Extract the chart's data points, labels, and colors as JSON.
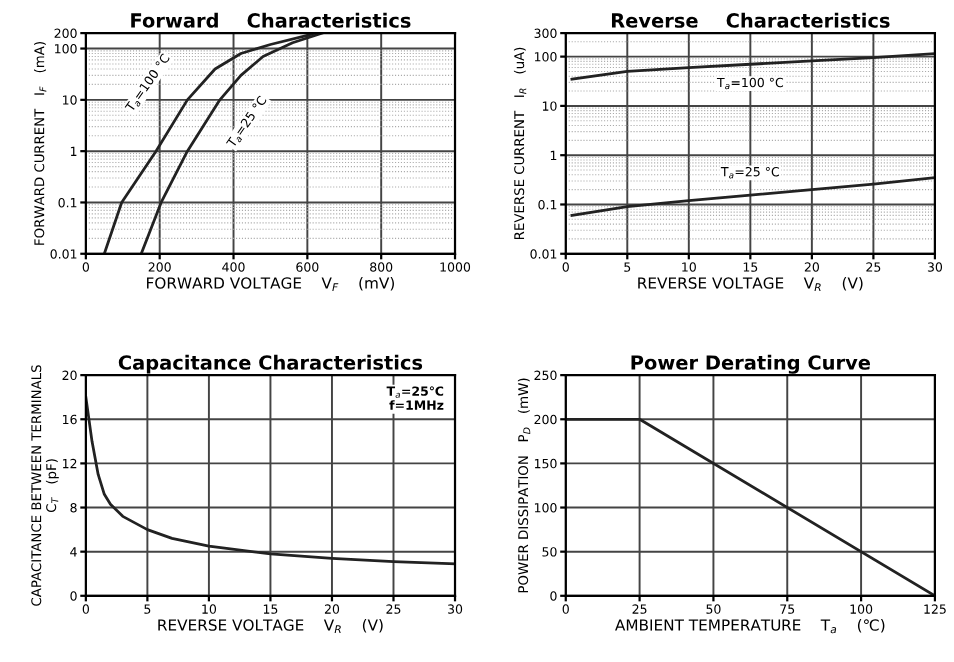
{
  "chart_data": [
    {
      "type": "line",
      "title": "Forward    Characteristics",
      "xlabel": "FORWARD VOLTAGE    V$_{F}$    (mV)",
      "ylabel": "FORWARD CURRENT   I$_{F}$   (mA)",
      "log": "y",
      "grid": true,
      "xlim": [
        0,
        1000
      ],
      "xticks": [
        0,
        200,
        400,
        600,
        800,
        1000
      ],
      "ylim": [
        0.01,
        200
      ],
      "yticks": [
        0.01,
        0.1,
        1,
        10,
        100,
        200
      ],
      "series": [
        {
          "color": "#222222",
          "x": [
            50,
            97,
            190,
            275,
            350,
            420,
            500,
            600,
            620
          ],
          "values": [
            0.01,
            0.1,
            1,
            10,
            40,
            80,
            120,
            180,
            200
          ]
        },
        {
          "color": "#222222",
          "x": [
            150,
            204,
            275,
            363,
            420,
            480,
            560,
            640
          ],
          "values": [
            0.01,
            0.1,
            1,
            10,
            30,
            70,
            130,
            200
          ]
        }
      ],
      "annotations": [
        {
          "text": "T$_{a}$=100 °C",
          "x": 275,
          "y": 10
        },
        {
          "text": "T$_{a}$=25 °C",
          "x": 363,
          "y": 10
        }
      ]
    },
    {
      "type": "line",
      "title": "Reverse    Characteristics",
      "xlabel": "REVERSE VOLTAGE    V$_{R}$    (V)",
      "ylabel": "REVERSE CURRENT   I$_{R}$   (uA)",
      "log": "y",
      "grid": true,
      "xlim": [
        0,
        30
      ],
      "xticks": [
        0,
        5,
        10,
        15,
        20,
        25,
        30
      ],
      "ylim": [
        0.01,
        300
      ],
      "yticks": [
        0.01,
        0.1,
        1,
        10,
        100,
        300
      ],
      "series": [
        {
          "color": "#222222",
          "x": [
            0.5,
            5,
            10,
            15,
            20,
            25,
            30
          ],
          "values": [
            35,
            50,
            60,
            70,
            82,
            95,
            115
          ]
        },
        {
          "color": "#222222",
          "x": [
            0.5,
            5,
            10,
            15,
            20,
            25,
            30
          ],
          "values": [
            0.06,
            0.09,
            0.12,
            0.155,
            0.2,
            0.26,
            0.35
          ]
        }
      ],
      "annotations": [
        {
          "text": "T$_{a}$=100 °C",
          "x": 15,
          "y": 70
        },
        {
          "text": "T$_{a}$=25 °C",
          "x": 15,
          "y": 0.155
        }
      ]
    },
    {
      "type": "line",
      "title": "Capacitance Characteristics",
      "xlabel": "REVERSE VOLTAGE    V$_{R}$    (V)",
      "ylabel": "CAPACITANCE BETWEEN TERMINALS\nC$_{T}$   (pF)",
      "grid": true,
      "xlim": [
        0,
        30
      ],
      "xticks": [
        0,
        5,
        10,
        15,
        20,
        25,
        30
      ],
      "ylim": [
        0,
        20
      ],
      "yticks": [
        0,
        4,
        8,
        12,
        16,
        20
      ],
      "series": [
        {
          "color": "#222222",
          "x": [
            0,
            0.5,
            1,
            1.5,
            2,
            3,
            5,
            7,
            10,
            15,
            20,
            25,
            30
          ],
          "values": [
            18,
            14,
            11,
            9.2,
            8.3,
            7.2,
            6,
            5.2,
            4.5,
            3.8,
            3.4,
            3.1,
            2.9
          ]
        }
      ],
      "annotations": [
        "T$_{a}$=25℃\nf=1MHz"
      ]
    },
    {
      "type": "line",
      "title": "Power Derating Curve",
      "xlabel": "AMBIENT TEMPERATURE    T$_{a}$    (℃)",
      "ylabel": "POWER DISSIPATION   P$_{D}$   (mW)",
      "grid": true,
      "xlim": [
        0,
        125
      ],
      "xticks": [
        0,
        25,
        50,
        75,
        100,
        125
      ],
      "ylim": [
        0,
        250
      ],
      "yticks": [
        0,
        50,
        100,
        150,
        200,
        250
      ],
      "series": [
        {
          "color": "#222222",
          "x": [
            0,
            25,
            125
          ],
          "values": [
            200,
            200,
            0
          ]
        }
      ]
    }
  ]
}
